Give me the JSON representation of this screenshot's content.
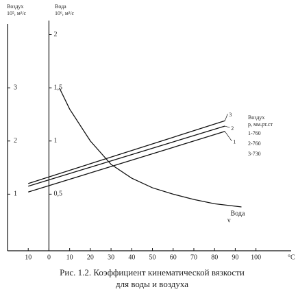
{
  "chart_data": {
    "type": "line",
    "caption": [
      "Рис. 1.2. Коэффициент кинематической вязкости",
      "для воды и воздуха"
    ],
    "y_label": [
      "Воздух",
      "10⁵, м²/с"
    ],
    "y2_label": [
      "Вода",
      "10⁶, м²/с"
    ],
    "x_label": "°C",
    "xlim": [
      -20,
      117
    ],
    "xticks": [
      {
        "value": -10,
        "label": "10"
      },
      0,
      10,
      20,
      30,
      40,
      50,
      60,
      70,
      80,
      90,
      100
    ],
    "ylim": [
      0,
      4.2
    ],
    "yticks": [
      1,
      2,
      3
    ],
    "y2lim": [
      0,
      2.1
    ],
    "y2ticks": [
      {
        "value": 0.5,
        "label": "0,5"
      },
      1,
      {
        "value": 1.5,
        "label": "1,5"
      },
      2
    ],
    "series": [
      {
        "name": "1",
        "color": "#111",
        "x": [
          -10,
          85
        ],
        "values": [
          1.04,
          2.18
        ]
      },
      {
        "name": "2",
        "color": "#111",
        "x": [
          -10,
          85
        ],
        "values": [
          1.15,
          2.28
        ]
      },
      {
        "name": "3",
        "color": "#111",
        "x": [
          -10,
          85
        ],
        "values": [
          1.2,
          2.38
        ]
      },
      {
        "name": "Вода",
        "color": "#111",
        "axis": "y2",
        "x": [
          5,
          10,
          20,
          30,
          40,
          50,
          60,
          70,
          80,
          93
        ],
        "values": [
          1.5,
          1.3,
          1.0,
          0.78,
          0.65,
          0.56,
          0.5,
          0.45,
          0.41,
          0.38
        ]
      }
    ],
    "annotations": [
      "ν"
    ],
    "legend_text": [
      "Воздух",
      "p, мм.рт.ст",
      "1-760",
      "2-760",
      "3-730"
    ]
  }
}
